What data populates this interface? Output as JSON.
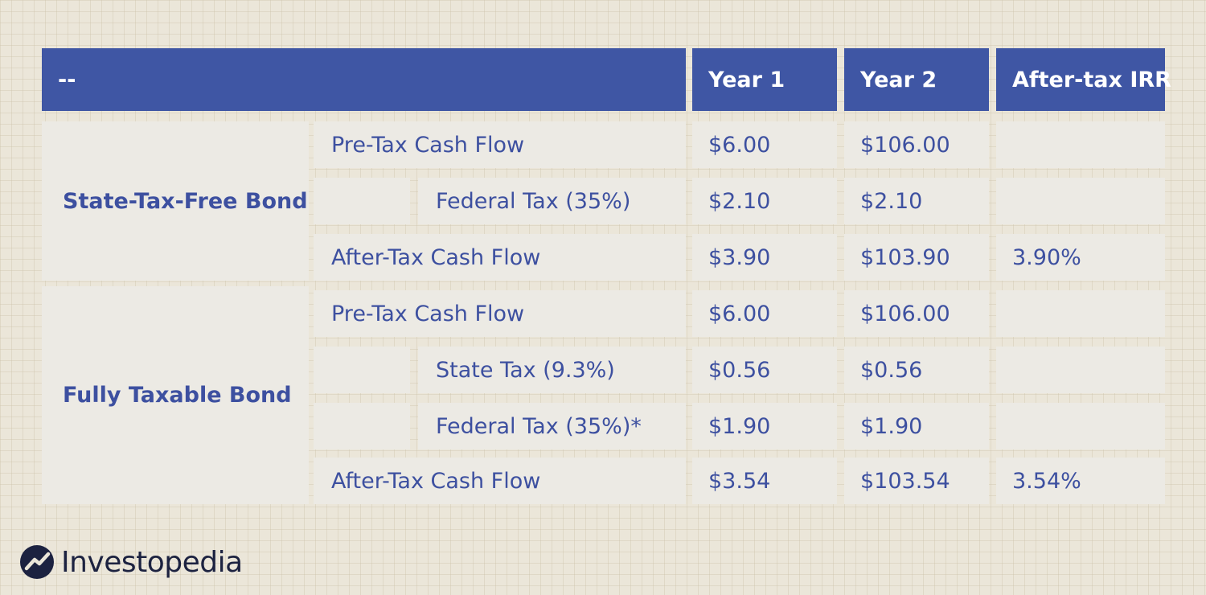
{
  "table": {
    "headers": [
      "--",
      "Year 1",
      "Year 2",
      "After-tax IRR"
    ],
    "groups": [
      {
        "label": "State-Tax-Free Bond",
        "rows": [
          {
            "label": "Pre-Tax Cash Flow",
            "indent": false,
            "y1": "$6.00",
            "y2": "$106.00",
            "irr": ""
          },
          {
            "label": "Federal Tax (35%)",
            "indent": true,
            "y1": "$2.10",
            "y2": "$2.10",
            "irr": ""
          },
          {
            "label": "After-Tax Cash Flow",
            "indent": false,
            "y1": "$3.90",
            "y2": "$103.90",
            "irr": "3.90%"
          }
        ]
      },
      {
        "label": "Fully Taxable Bond",
        "rows": [
          {
            "label": "Pre-Tax Cash Flow",
            "indent": false,
            "y1": "$6.00",
            "y2": "$106.00",
            "irr": ""
          },
          {
            "label": "State Tax (9.3%)",
            "indent": true,
            "y1": "$0.56",
            "y2": "$0.56",
            "irr": ""
          },
          {
            "label": "Federal Tax (35%)*",
            "indent": true,
            "y1": "$1.90",
            "y2": "$1.90",
            "irr": ""
          },
          {
            "label": "After-Tax Cash Flow",
            "indent": false,
            "y1": "$3.54",
            "y2": "$103.54",
            "irr": "3.54%"
          }
        ]
      }
    ]
  },
  "brand": {
    "name": "Investopedia",
    "icon": "investopedia-logo-icon"
  },
  "colors": {
    "header_bg": "#3f56a4",
    "header_text": "#ffffff",
    "cell_bg": "#eceae4",
    "text": "#3d50a0",
    "page_bg": "#ebe6d9"
  }
}
